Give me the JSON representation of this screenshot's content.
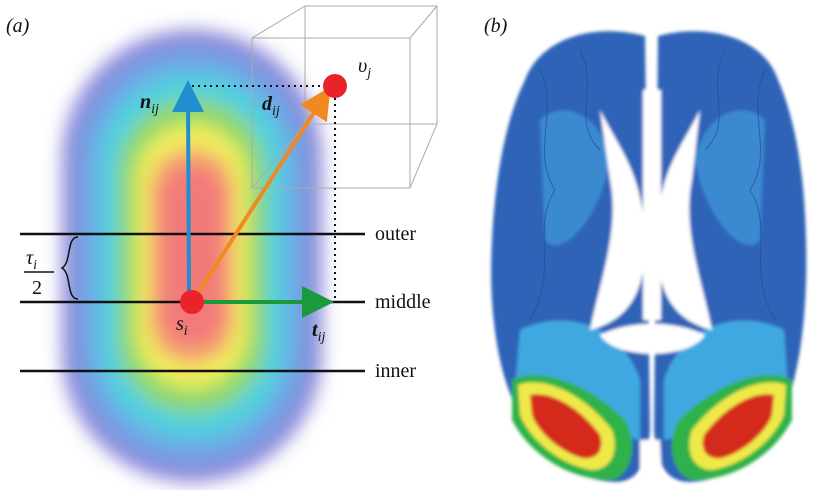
{
  "panel_a": {
    "label": "(a)",
    "n": {
      "symbol": "n",
      "sub": "ij"
    },
    "d": {
      "symbol": "d",
      "sub": "ij"
    },
    "t": {
      "symbol": "t",
      "sub": "ij"
    },
    "s": {
      "symbol": "s",
      "sub": "i"
    },
    "v": {
      "symbol": "υ",
      "sub": "j"
    },
    "tau": {
      "symbol": "τ",
      "sub": "i",
      "denominator": "2"
    },
    "surfaces": [
      "outer",
      "middle",
      "inner"
    ]
  },
  "panel_b": {
    "label": "(b)"
  }
}
